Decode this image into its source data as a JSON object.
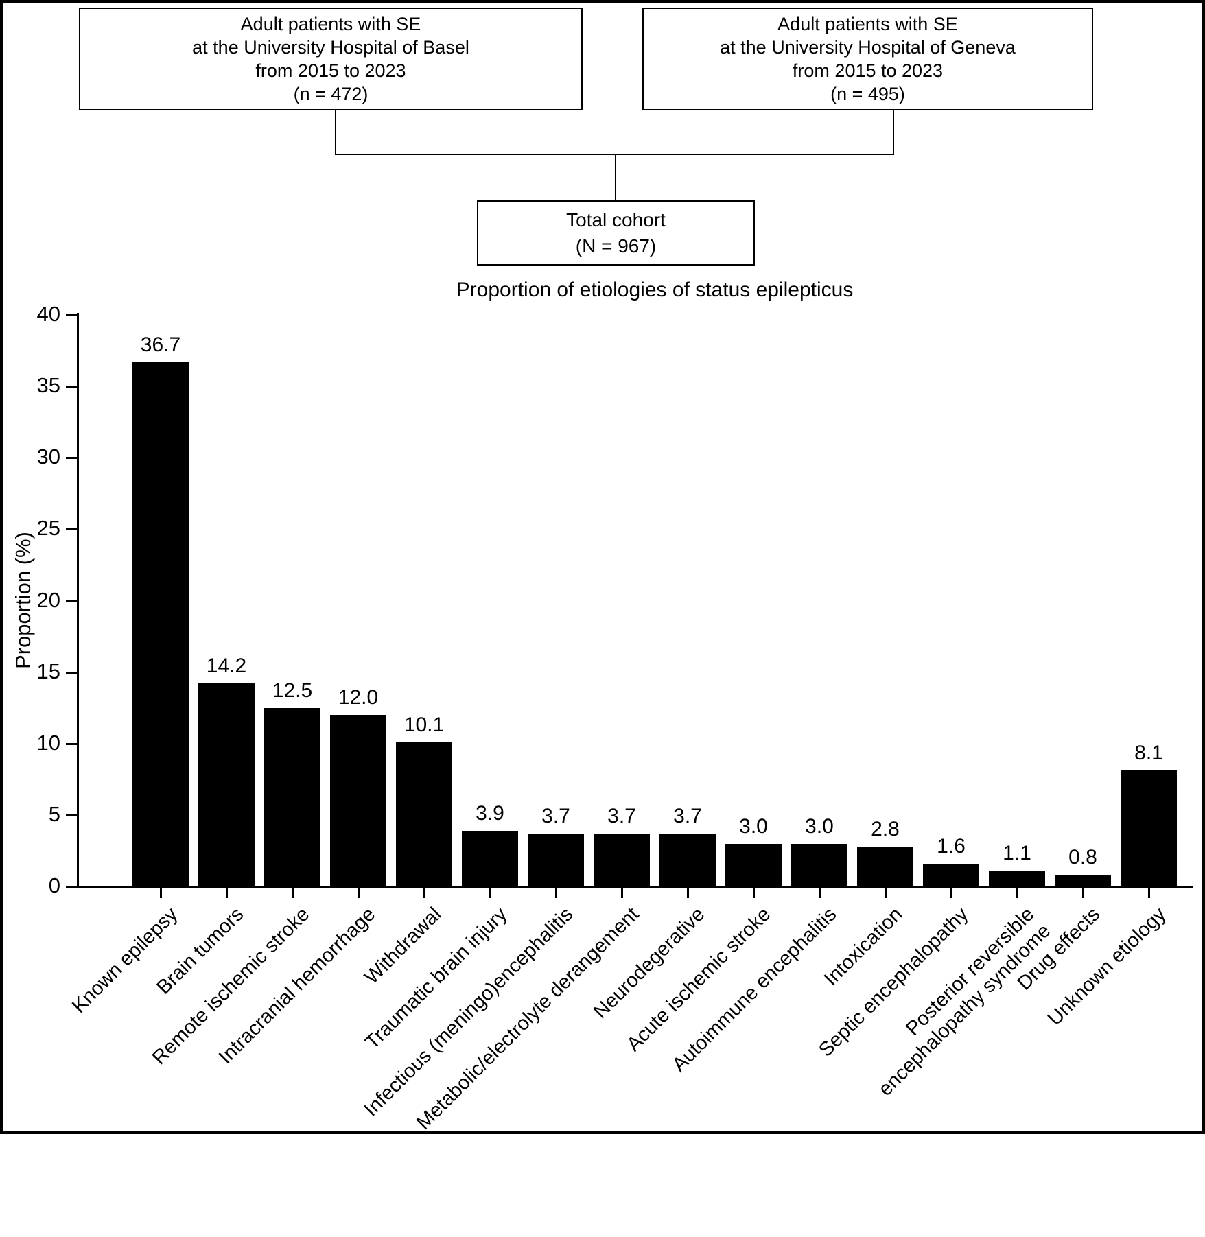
{
  "figure": {
    "background": "#ffffff",
    "border_color": "#000000"
  },
  "flowchart": {
    "left_box": "Adult patients with SE\nat the University Hospital of Basel\nfrom 2015 to 2023\n(n = 472)",
    "right_box": "Adult patients with SE\nat the University Hospital of Geneva\nfrom 2015 to 2023\n(n = 495)",
    "total_box": "Total cohort\n(N = 967)"
  },
  "chart_data": {
    "type": "bar",
    "title": "Proportion of etiologies of status epilepticus",
    "ylabel": "Proportion (%)",
    "xlabel": "",
    "ylim": [
      0,
      40
    ],
    "yticks": [
      0,
      5,
      10,
      15,
      20,
      25,
      30,
      35,
      40
    ],
    "grid": false,
    "legend": "none",
    "bar_color": "#000000",
    "categories": [
      "Known epilepsy",
      "Brain tumors",
      "Remote ischemic stroke",
      "Intracranial hemorrhage",
      "Withdrawal",
      "Traumatic brain injury",
      "Infectious (meningo)encephalitis",
      "Metabolic/electrolyte derangement",
      "Neurodegerative",
      "Acute ischemic stroke",
      "Autoimmune encephalitis",
      "Intoxication",
      "Septic encephalopathy",
      "Posterior reversible\nencephalopathy syndrome",
      "Drug effects",
      "Unknown etiology"
    ],
    "values": [
      36.7,
      14.2,
      12.5,
      12.0,
      10.1,
      3.9,
      3.7,
      3.7,
      3.7,
      3.0,
      3.0,
      2.8,
      1.6,
      1.1,
      0.8,
      8.1
    ],
    "value_labels": [
      "36.7",
      "14.2",
      "12.5",
      "12.0",
      "10.1",
      "3.9",
      "3.7",
      "3.7",
      "3.7",
      "3.0",
      "3.0",
      "2.8",
      "1.6",
      "1.1",
      "0.8",
      "8.1"
    ]
  }
}
